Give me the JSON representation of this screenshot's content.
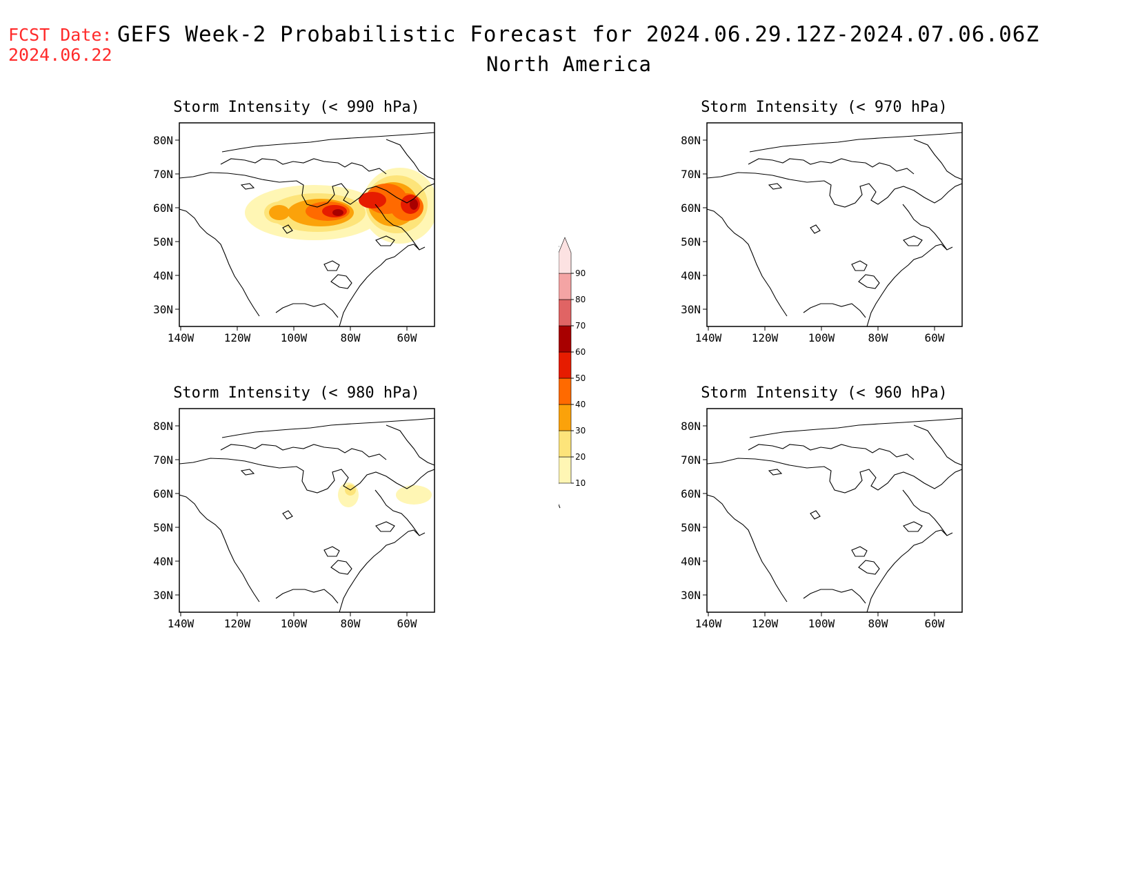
{
  "header": {
    "fcst_label": "FCST Date:",
    "fcst_date": "2024.06.22",
    "title": "GEFS Week-2 Probabilistic Forecast for 2024.06.29.12Z-2024.07.06.06Z",
    "region": "North America"
  },
  "axes": {
    "lat_ticks": [
      "80N",
      "70N",
      "60N",
      "50N",
      "40N",
      "30N"
    ],
    "lon_ticks": [
      "140W",
      "120W",
      "100W",
      "80W",
      "60W"
    ]
  },
  "panels": [
    {
      "title": "Storm Intensity (< 990 hPa)",
      "threshold": "990 hPa",
      "coverage": "high"
    },
    {
      "title": "Storm Intensity (< 970 hPa)",
      "threshold": "970 hPa",
      "coverage": "none"
    },
    {
      "title": "Storm Intensity (< 980 hPa)",
      "threshold": "980 hPa",
      "coverage": "low"
    },
    {
      "title": "Storm Intensity (< 960 hPa)",
      "threshold": "960 hPa",
      "coverage": "none"
    }
  ],
  "legend": {
    "levels": [
      "10",
      "20",
      "30",
      "40",
      "50",
      "60",
      "70",
      "80",
      "90"
    ],
    "colors": [
      "#fff6b4",
      "#fde47a",
      "#fba20a",
      "#ff6a00",
      "#e61c00",
      "#a80000",
      "#e06464",
      "#f4a4a4",
      "#fce2e2"
    ]
  }
}
